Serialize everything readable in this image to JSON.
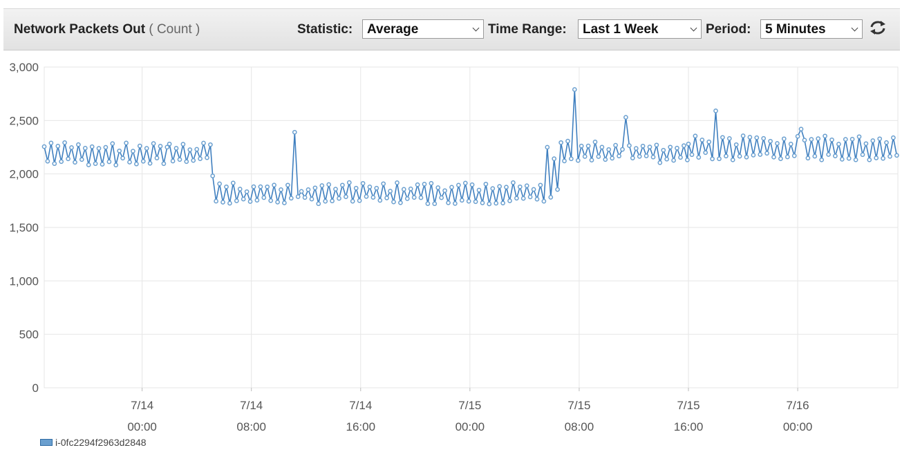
{
  "header": {
    "title": "Network Packets Out",
    "unit": "( Count )",
    "statistic": {
      "label": "Statistic:",
      "value": "Average"
    },
    "time_range": {
      "label": "Time Range:",
      "value": "Last 1 Week"
    },
    "period": {
      "label": "Period:",
      "value": "5 Minutes"
    },
    "refresh_icon": "refresh-icon"
  },
  "legend": {
    "label": "i-0fc2294f2963d2848"
  },
  "colors": {
    "series": "#6a9fcf",
    "series_stroke": "#3f7fbf",
    "grid": "#e6e6e6"
  },
  "chart_data": {
    "type": "line",
    "title": "",
    "xlabel": "",
    "ylabel": "",
    "ylim": [
      0,
      3000
    ],
    "yticks": [
      {
        "value": 0,
        "label": "0"
      },
      {
        "value": 500,
        "label": "500"
      },
      {
        "value": 1000,
        "label": "1,000"
      },
      {
        "value": 1500,
        "label": "1,500"
      },
      {
        "value": 2000,
        "label": "2,000"
      },
      {
        "value": 2500,
        "label": "2,500"
      },
      {
        "value": 3000,
        "label": "3,000"
      }
    ],
    "xlim": [
      "7/13 16:50",
      "7/16 07:20"
    ],
    "xticks": [
      {
        "date": "7/14",
        "time": "00:00"
      },
      {
        "date": "7/14",
        "time": "08:00"
      },
      {
        "date": "7/14",
        "time": "16:00"
      },
      {
        "date": "7/15",
        "time": "00:00"
      },
      {
        "date": "7/15",
        "time": "08:00"
      },
      {
        "date": "7/15",
        "time": "16:00"
      },
      {
        "date": "7/16",
        "time": "00:00"
      }
    ],
    "grid": true,
    "legend_position": "bottom-left",
    "series": [
      {
        "name": "i-0fc2294f2963d2848",
        "segments": [
          {
            "from": "7/13 16:50",
            "to": "7/14 02:00",
            "low": 2080,
            "high": 2300
          },
          {
            "from": "7/14 02:00",
            "to": "7/14 05:10",
            "low": 2110,
            "high": 2310
          },
          {
            "from": "7/14 05:10",
            "to": "7/14 05:40",
            "low": 1700,
            "high": 2050
          },
          {
            "from": "7/14 05:40",
            "to": "7/15 06:10",
            "low": 1720,
            "high": 1920
          },
          {
            "from": "7/15 06:10",
            "to": "7/15 06:40",
            "low": 1850,
            "high": 2150
          },
          {
            "from": "7/15 06:40",
            "to": "7/15 16:00",
            "low": 2100,
            "high": 2310
          },
          {
            "from": "7/15 16:00",
            "to": "7/16 07:20",
            "low": 2130,
            "high": 2360
          }
        ],
        "spikes": [
          {
            "x": "7/14 11:10",
            "y": 2390
          },
          {
            "x": "7/15 05:40",
            "y": 2250
          },
          {
            "x": "7/15 07:40",
            "y": 2790
          },
          {
            "x": "7/15 11:30",
            "y": 2530
          },
          {
            "x": "7/15 18:00",
            "y": 2590
          },
          {
            "x": "7/16 00:10",
            "y": 2420
          }
        ]
      }
    ]
  }
}
